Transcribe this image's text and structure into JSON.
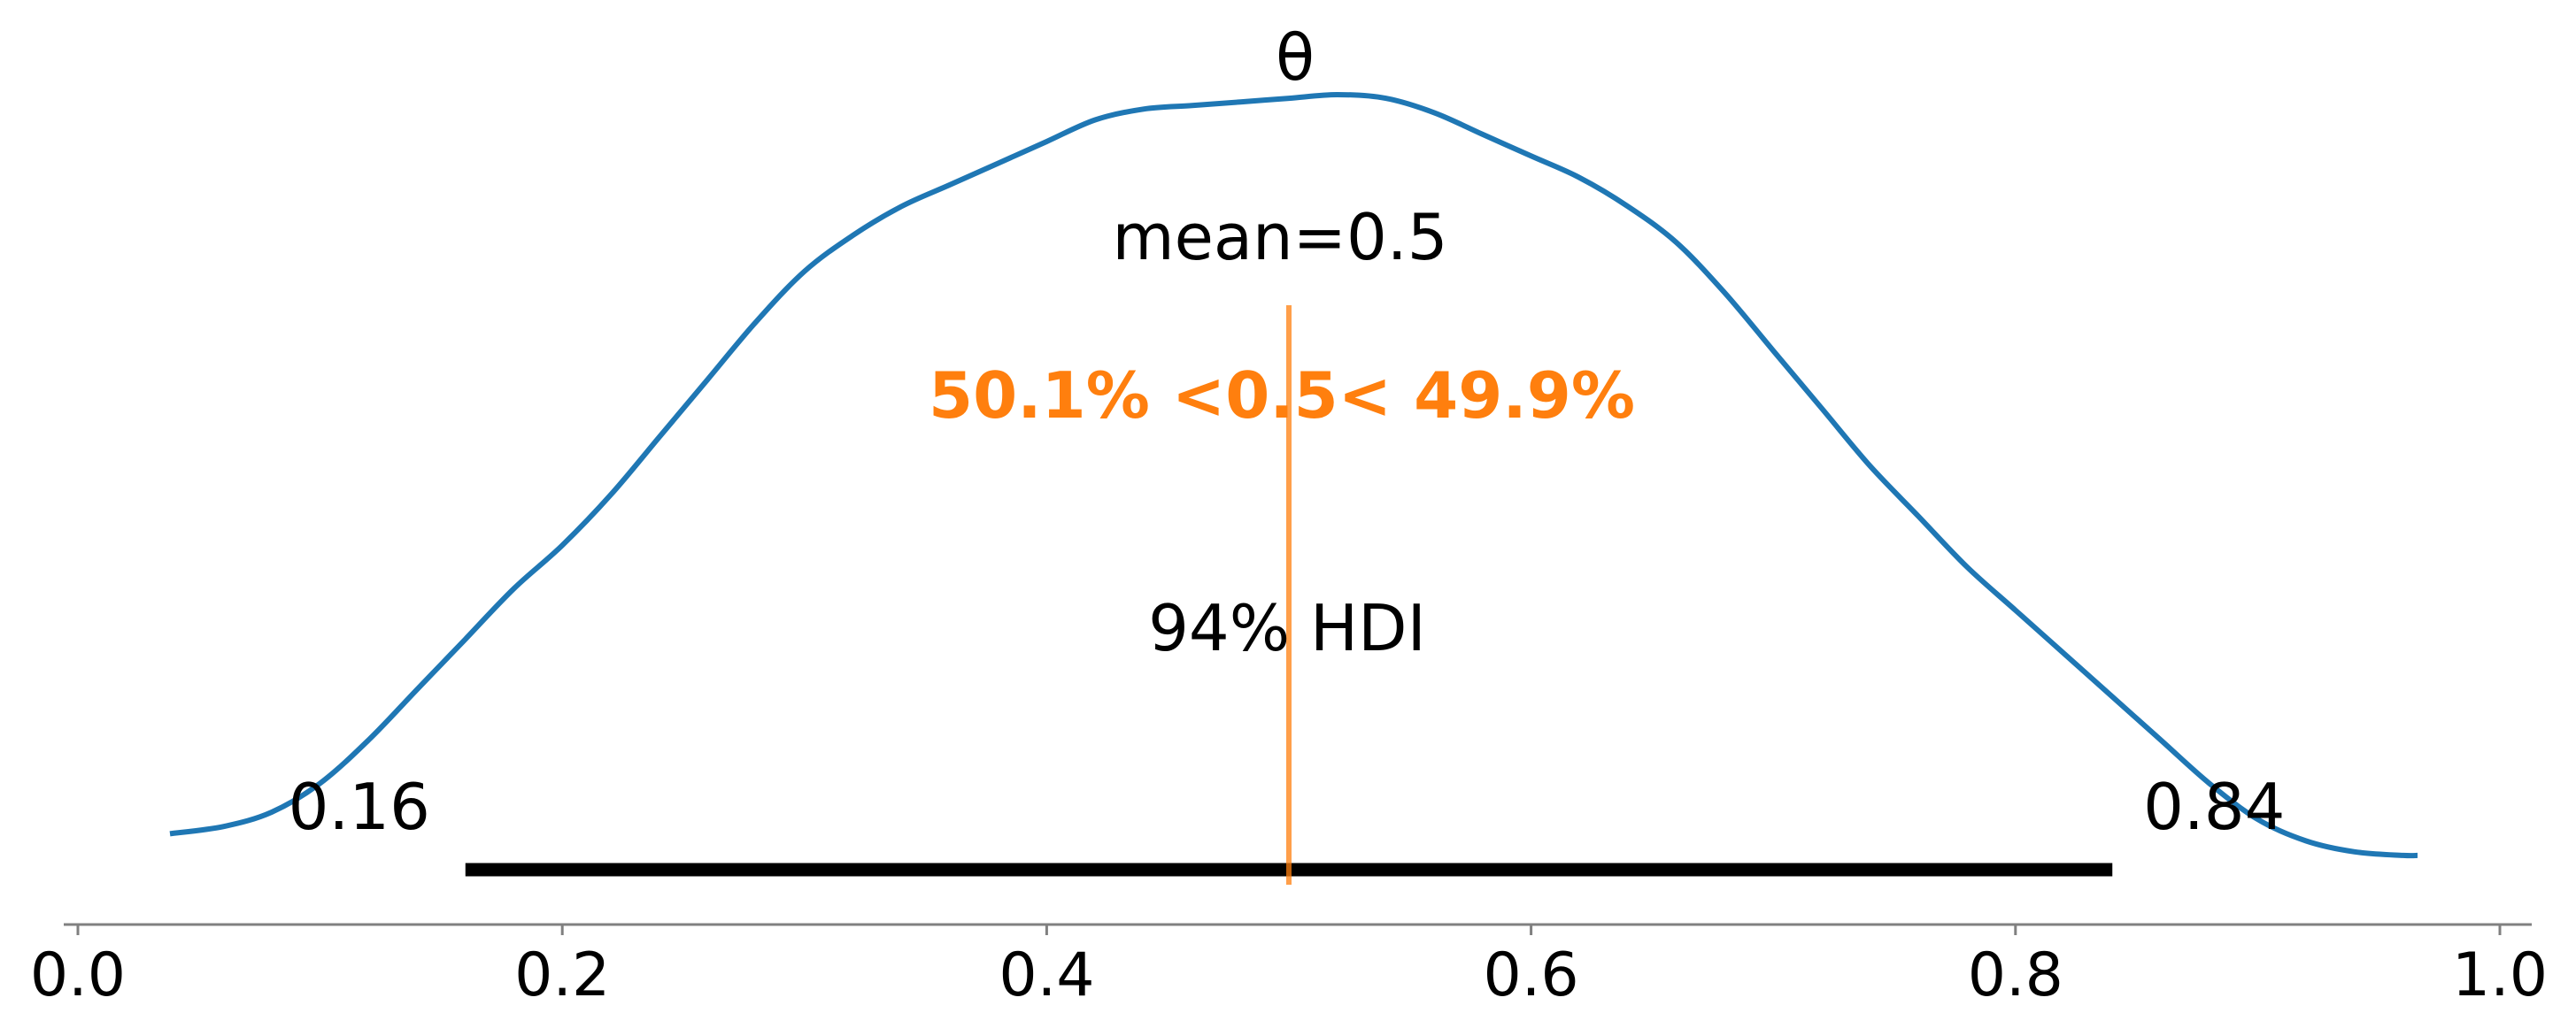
{
  "chart_data": {
    "type": "line",
    "title": "θ",
    "xlim": [
      -0.005,
      1.04
    ],
    "ylim": [
      -0.06,
      1.06
    ],
    "grid": false,
    "x_ticks": [
      0.0,
      0.2,
      0.4,
      0.6,
      0.8,
      1.0
    ],
    "x_tick_labels": [
      "0.0",
      "0.2",
      "0.4",
      "0.6",
      "0.8",
      "1.0"
    ],
    "series": [
      {
        "color": "#1f77b4",
        "x": [
          0.038,
          0.06,
          0.08,
          0.1,
          0.12,
          0.14,
          0.16,
          0.18,
          0.2,
          0.22,
          0.24,
          0.26,
          0.28,
          0.3,
          0.32,
          0.34,
          0.36,
          0.38,
          0.4,
          0.42,
          0.44,
          0.46,
          0.48,
          0.5,
          0.52,
          0.54,
          0.56,
          0.58,
          0.6,
          0.62,
          0.64,
          0.66,
          0.68,
          0.7,
          0.72,
          0.74,
          0.76,
          0.78,
          0.8,
          0.82,
          0.84,
          0.86,
          0.88,
          0.9,
          0.92,
          0.94,
          0.96,
          0.966
        ],
        "y": [
          0.04,
          0.05,
          0.07,
          0.11,
          0.17,
          0.24,
          0.31,
          0.38,
          0.44,
          0.51,
          0.59,
          0.67,
          0.75,
          0.82,
          0.87,
          0.91,
          0.94,
          0.97,
          1.0,
          1.03,
          1.045,
          1.05,
          1.055,
          1.06,
          1.065,
          1.06,
          1.04,
          1.01,
          0.98,
          0.95,
          0.91,
          0.86,
          0.79,
          0.71,
          0.63,
          0.55,
          0.48,
          0.41,
          0.35,
          0.29,
          0.23,
          0.17,
          0.11,
          0.06,
          0.03,
          0.015,
          0.01,
          0.01
        ]
      }
    ],
    "stats": {
      "point_estimate_label": "mean=0.5",
      "reference_label": "50.1% <0.5< 49.9%",
      "reference_value": 0.5,
      "reference_color": "#ff7f0e",
      "hdi_label": "94% HDI",
      "hdi_low": 0.16,
      "hdi_high": 0.84,
      "hdi_low_label": "0.16",
      "hdi_high_label": "0.84"
    }
  }
}
